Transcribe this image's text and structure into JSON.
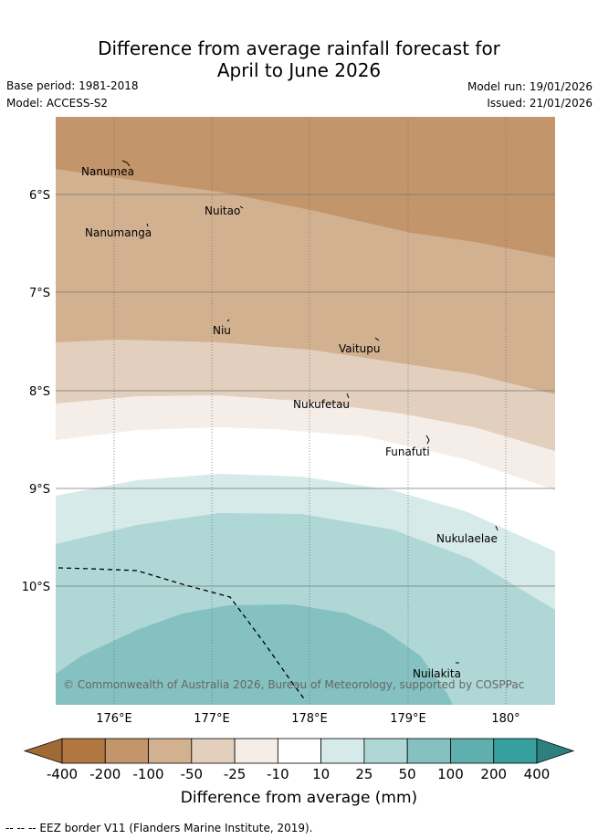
{
  "header": {
    "title_line1": "Difference from average rainfall forecast for",
    "title_line2": "April to June 2026",
    "base_period": "Base period: 1981-2018",
    "model": "Model: ACCESS-S2",
    "model_run": "Model run: 19/01/2026",
    "issued": "Issued: 21/01/2026"
  },
  "map": {
    "lat_labels": [
      "6°S",
      "7°S",
      "8°S",
      "9°S",
      "10°S"
    ],
    "lon_labels": [
      "176°E",
      "177°E",
      "178°E",
      "179°E",
      "180°"
    ],
    "places": [
      "Nanumea",
      "Nuitao",
      "Nanumanga",
      "Niu",
      "Vaitupu",
      "Nukufetau",
      "Funafuti",
      "Nukulaelae",
      "Nuilakita"
    ],
    "copyright": "© Commonwealth of Australia 2026, Bureau of Meteorology, supported by COSPPac"
  },
  "colorbar": {
    "labels": [
      "-400",
      "-200",
      "-100",
      "-50",
      "-25",
      "-10",
      "10",
      "25",
      "50",
      "100",
      "200",
      "400"
    ],
    "colors": [
      "#b07840",
      "#c2956b",
      "#d2b190",
      "#e3cfbd",
      "#f5ede8",
      "#ffffff",
      "#d6eae9",
      "#aed7d6",
      "#84c1c0",
      "#5eafad",
      "#36a09e"
    ],
    "under_color": "#a06a35",
    "over_color": "#2d8080",
    "title": "Difference from average (mm)"
  },
  "footer": {
    "eez_note": "--  --  -- EEZ border V11 (Flanders Marine Institute, 2019)."
  }
}
